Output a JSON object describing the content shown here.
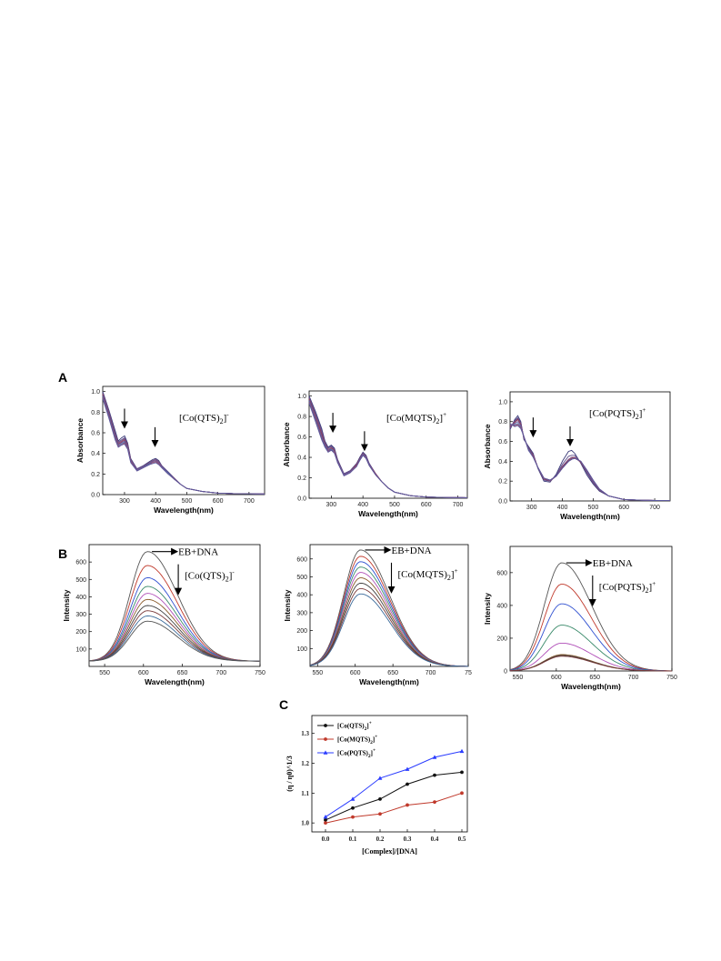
{
  "panel_labels": {
    "a": "A",
    "b": "B",
    "c": "C"
  },
  "colors": {
    "uv_curves": [
      "#3a3a78",
      "#5a4a8a",
      "#7a4a7a",
      "#8a3a5a",
      "#6a5a9a",
      "#4a6aaa",
      "#9a4a6a",
      "#5a5aa0"
    ],
    "fl_curves": [
      "#555555",
      "#c0392b",
      "#2e4fd0",
      "#3a8a6a",
      "#b04fb8",
      "#8a5a2a",
      "#404040",
      "#7a3a3a",
      "#3a6a9a"
    ],
    "c_series": [
      "#111111",
      "#c0392b",
      "#2a3cff"
    ]
  },
  "chart_data": [
    {
      "type": "line",
      "panel": "A",
      "xlabel": "Wavelength(nm)",
      "ylabel": "Absorbance",
      "annotation": "[Co(QTS)2]",
      "xlim": [
        230,
        750
      ],
      "ylim": [
        0,
        1.05
      ],
      "xticks": [
        "300",
        "400",
        "500",
        "600",
        "700"
      ],
      "yticks": [
        "0.0",
        "0.2",
        "0.4",
        "0.6",
        "0.8",
        "1.0"
      ],
      "arrows_at_nm": [
        300,
        398
      ],
      "x": [
        230,
        250,
        270,
        280,
        290,
        300,
        310,
        320,
        340,
        360,
        380,
        390,
        400,
        410,
        420,
        440,
        460,
        480,
        500,
        550,
        600,
        650,
        700,
        750
      ],
      "series": [
        {
          "values": [
            1.0,
            0.82,
            0.62,
            0.52,
            0.55,
            0.57,
            0.5,
            0.35,
            0.25,
            0.28,
            0.32,
            0.34,
            0.35,
            0.33,
            0.28,
            0.22,
            0.16,
            0.1,
            0.06,
            0.03,
            0.015,
            0.01,
            0.008,
            0.006
          ]
        },
        {
          "values": [
            0.99,
            0.81,
            0.6,
            0.51,
            0.53,
            0.55,
            0.49,
            0.34,
            0.25,
            0.28,
            0.31,
            0.33,
            0.34,
            0.32,
            0.28,
            0.22,
            0.16,
            0.1,
            0.06,
            0.03,
            0.015,
            0.01,
            0.008,
            0.006
          ]
        },
        {
          "values": [
            0.98,
            0.79,
            0.58,
            0.5,
            0.52,
            0.54,
            0.48,
            0.34,
            0.24,
            0.27,
            0.31,
            0.33,
            0.34,
            0.32,
            0.27,
            0.21,
            0.16,
            0.1,
            0.06,
            0.03,
            0.015,
            0.01,
            0.008,
            0.006
          ]
        },
        {
          "values": [
            0.97,
            0.78,
            0.57,
            0.49,
            0.51,
            0.53,
            0.47,
            0.33,
            0.24,
            0.27,
            0.3,
            0.32,
            0.33,
            0.31,
            0.27,
            0.21,
            0.15,
            0.1,
            0.06,
            0.03,
            0.015,
            0.01,
            0.008,
            0.006
          ]
        },
        {
          "values": [
            0.96,
            0.77,
            0.56,
            0.48,
            0.5,
            0.52,
            0.46,
            0.33,
            0.24,
            0.27,
            0.3,
            0.32,
            0.33,
            0.31,
            0.27,
            0.21,
            0.15,
            0.1,
            0.06,
            0.03,
            0.015,
            0.01,
            0.008,
            0.006
          ]
        },
        {
          "values": [
            0.95,
            0.76,
            0.55,
            0.48,
            0.49,
            0.51,
            0.46,
            0.32,
            0.23,
            0.26,
            0.3,
            0.31,
            0.32,
            0.3,
            0.26,
            0.21,
            0.15,
            0.1,
            0.06,
            0.03,
            0.015,
            0.01,
            0.008,
            0.006
          ]
        },
        {
          "values": [
            0.94,
            0.75,
            0.54,
            0.47,
            0.48,
            0.5,
            0.45,
            0.32,
            0.23,
            0.26,
            0.29,
            0.31,
            0.32,
            0.3,
            0.26,
            0.2,
            0.15,
            0.1,
            0.06,
            0.03,
            0.015,
            0.01,
            0.008,
            0.006
          ]
        },
        {
          "values": [
            0.93,
            0.74,
            0.53,
            0.46,
            0.48,
            0.49,
            0.44,
            0.31,
            0.23,
            0.26,
            0.29,
            0.3,
            0.31,
            0.29,
            0.26,
            0.2,
            0.15,
            0.1,
            0.06,
            0.03,
            0.015,
            0.01,
            0.008,
            0.006
          ]
        }
      ]
    },
    {
      "type": "line",
      "panel": "A",
      "xlabel": "Wavelength(nm)",
      "ylabel": "Absorbance",
      "annotation": "[Co(MQTS)2]",
      "xlim": [
        230,
        730
      ],
      "ylim": [
        0,
        1.05
      ],
      "xticks": [
        "300",
        "400",
        "500",
        "600",
        "700"
      ],
      "yticks": [
        "0.0",
        "0.2",
        "0.4",
        "0.6",
        "0.8",
        "1.0"
      ],
      "arrows_at_nm": [
        305,
        405
      ],
      "x": [
        230,
        250,
        270,
        280,
        290,
        300,
        310,
        320,
        340,
        360,
        380,
        390,
        400,
        410,
        420,
        440,
        460,
        480,
        500,
        550,
        600,
        650,
        700,
        730
      ],
      "series": [
        {
          "values": [
            1.0,
            0.85,
            0.68,
            0.56,
            0.5,
            0.52,
            0.49,
            0.38,
            0.24,
            0.27,
            0.34,
            0.4,
            0.45,
            0.42,
            0.34,
            0.24,
            0.16,
            0.1,
            0.06,
            0.025,
            0.012,
            0.008,
            0.006,
            0.005
          ]
        },
        {
          "values": [
            0.99,
            0.83,
            0.66,
            0.55,
            0.49,
            0.51,
            0.48,
            0.37,
            0.24,
            0.27,
            0.34,
            0.39,
            0.44,
            0.41,
            0.34,
            0.24,
            0.16,
            0.1,
            0.06,
            0.025,
            0.012,
            0.008,
            0.006,
            0.005
          ]
        },
        {
          "values": [
            0.98,
            0.81,
            0.64,
            0.54,
            0.48,
            0.5,
            0.47,
            0.37,
            0.23,
            0.26,
            0.33,
            0.39,
            0.44,
            0.41,
            0.33,
            0.24,
            0.16,
            0.1,
            0.06,
            0.025,
            0.012,
            0.008,
            0.006,
            0.005
          ]
        },
        {
          "values": [
            0.97,
            0.8,
            0.62,
            0.53,
            0.47,
            0.49,
            0.47,
            0.36,
            0.23,
            0.26,
            0.33,
            0.38,
            0.43,
            0.4,
            0.33,
            0.24,
            0.16,
            0.1,
            0.06,
            0.025,
            0.012,
            0.008,
            0.006,
            0.005
          ]
        },
        {
          "values": [
            0.96,
            0.78,
            0.6,
            0.52,
            0.47,
            0.48,
            0.46,
            0.36,
            0.23,
            0.26,
            0.32,
            0.38,
            0.43,
            0.4,
            0.33,
            0.23,
            0.16,
            0.1,
            0.06,
            0.025,
            0.012,
            0.008,
            0.006,
            0.005
          ]
        },
        {
          "values": [
            0.95,
            0.77,
            0.59,
            0.51,
            0.46,
            0.48,
            0.45,
            0.35,
            0.22,
            0.25,
            0.32,
            0.37,
            0.42,
            0.39,
            0.32,
            0.23,
            0.16,
            0.1,
            0.06,
            0.025,
            0.012,
            0.008,
            0.006,
            0.005
          ]
        },
        {
          "values": [
            0.94,
            0.76,
            0.58,
            0.5,
            0.46,
            0.47,
            0.45,
            0.35,
            0.22,
            0.25,
            0.32,
            0.37,
            0.42,
            0.39,
            0.32,
            0.23,
            0.16,
            0.1,
            0.06,
            0.025,
            0.012,
            0.008,
            0.006,
            0.005
          ]
        },
        {
          "values": [
            0.93,
            0.75,
            0.57,
            0.5,
            0.45,
            0.47,
            0.44,
            0.35,
            0.22,
            0.25,
            0.31,
            0.37,
            0.42,
            0.39,
            0.32,
            0.23,
            0.16,
            0.1,
            0.06,
            0.025,
            0.012,
            0.008,
            0.006,
            0.005
          ]
        }
      ]
    },
    {
      "type": "line",
      "panel": "A",
      "xlabel": "Wavelength(nm)",
      "ylabel": "Absorbance",
      "annotation": "[Co(PQTS)2]",
      "xlim": [
        230,
        750
      ],
      "ylim": [
        0,
        1.1
      ],
      "xticks": [
        "300",
        "400",
        "500",
        "600",
        "700"
      ],
      "yticks": [
        "0.0",
        "0.2",
        "0.4",
        "0.6",
        "0.8",
        "1.0"
      ],
      "arrows_at_nm": [
        305,
        425
      ],
      "x": [
        230,
        245,
        255,
        265,
        275,
        290,
        305,
        320,
        340,
        360,
        380,
        400,
        420,
        430,
        440,
        460,
        480,
        500,
        520,
        550,
        600,
        650,
        700,
        750
      ],
      "series": [
        {
          "values": [
            0.72,
            0.82,
            0.86,
            0.8,
            0.62,
            0.55,
            0.48,
            0.33,
            0.2,
            0.19,
            0.27,
            0.4,
            0.5,
            0.51,
            0.48,
            0.38,
            0.26,
            0.17,
            0.1,
            0.05,
            0.015,
            0.008,
            0.005,
            0.004
          ]
        },
        {
          "values": [
            0.73,
            0.81,
            0.84,
            0.79,
            0.63,
            0.54,
            0.47,
            0.34,
            0.21,
            0.2,
            0.26,
            0.37,
            0.45,
            0.46,
            0.46,
            0.39,
            0.28,
            0.18,
            0.11,
            0.05,
            0.015,
            0.008,
            0.005,
            0.004
          ]
        },
        {
          "values": [
            0.74,
            0.8,
            0.83,
            0.78,
            0.64,
            0.53,
            0.46,
            0.34,
            0.22,
            0.2,
            0.25,
            0.35,
            0.42,
            0.44,
            0.44,
            0.39,
            0.29,
            0.19,
            0.11,
            0.05,
            0.015,
            0.008,
            0.005,
            0.004
          ]
        },
        {
          "values": [
            0.75,
            0.79,
            0.82,
            0.77,
            0.64,
            0.53,
            0.46,
            0.34,
            0.22,
            0.21,
            0.25,
            0.34,
            0.41,
            0.43,
            0.44,
            0.39,
            0.3,
            0.2,
            0.12,
            0.05,
            0.015,
            0.008,
            0.005,
            0.004
          ]
        },
        {
          "values": [
            0.76,
            0.78,
            0.8,
            0.76,
            0.65,
            0.52,
            0.45,
            0.34,
            0.23,
            0.21,
            0.25,
            0.33,
            0.4,
            0.42,
            0.43,
            0.4,
            0.3,
            0.2,
            0.12,
            0.05,
            0.015,
            0.008,
            0.005,
            0.004
          ]
        },
        {
          "values": [
            0.76,
            0.77,
            0.78,
            0.75,
            0.65,
            0.52,
            0.45,
            0.34,
            0.23,
            0.21,
            0.25,
            0.33,
            0.4,
            0.42,
            0.43,
            0.4,
            0.31,
            0.21,
            0.12,
            0.05,
            0.015,
            0.008,
            0.005,
            0.004
          ]
        },
        {
          "values": [
            0.77,
            0.76,
            0.77,
            0.74,
            0.65,
            0.51,
            0.45,
            0.34,
            0.23,
            0.21,
            0.25,
            0.33,
            0.4,
            0.42,
            0.43,
            0.4,
            0.31,
            0.21,
            0.12,
            0.05,
            0.015,
            0.008,
            0.005,
            0.004
          ]
        },
        {
          "values": [
            0.78,
            0.75,
            0.76,
            0.73,
            0.65,
            0.51,
            0.44,
            0.34,
            0.23,
            0.21,
            0.25,
            0.33,
            0.4,
            0.42,
            0.43,
            0.4,
            0.31,
            0.21,
            0.12,
            0.05,
            0.015,
            0.008,
            0.005,
            0.004
          ]
        }
      ]
    },
    {
      "type": "line",
      "panel": "B",
      "xlabel": "Wavelength(nm)",
      "ylabel": "Intensity",
      "annotations": [
        "EB+DNA",
        "[Co(QTS)2]"
      ],
      "xlim": [
        530,
        750
      ],
      "ylim": [
        0,
        700
      ],
      "xticks": [
        "550",
        "600",
        "650",
        "700",
        "750"
      ],
      "yticks": [
        "100",
        "200",
        "300",
        "400",
        "500",
        "600"
      ],
      "peak_nm": 605,
      "peaks": [
        660,
        580,
        510,
        460,
        420,
        385,
        350,
        320,
        290,
        260
      ],
      "baseline": 30
    },
    {
      "type": "line",
      "panel": "B",
      "xlabel": "Wavelength(nm)",
      "ylabel": "Intensity",
      "annotations": [
        "EB+DNA",
        "[Co(MQTS)2]"
      ],
      "xlim": [
        540,
        750
      ],
      "ylim": [
        0,
        680
      ],
      "xticks": [
        "550",
        "600",
        "650",
        "700",
        "75"
      ],
      "yticks": [
        "100",
        "200",
        "300",
        "400",
        "500",
        "600"
      ],
      "peak_nm": 607,
      "peaks": [
        650,
        615,
        585,
        555,
        525,
        495,
        465,
        435,
        405
      ],
      "baseline": 0
    },
    {
      "type": "line",
      "panel": "B",
      "xlabel": "Wavelength(nm)",
      "ylabel": "Intensity",
      "annotations": [
        "EB+DNA",
        "[Co(PQTS)2]"
      ],
      "xlim": [
        540,
        750
      ],
      "ylim": [
        0,
        760
      ],
      "xticks": [
        "550",
        "600",
        "650",
        "700",
        "750"
      ],
      "yticks": [
        "0",
        "200",
        "400",
        "600"
      ],
      "peak_nm": 607,
      "peaks": [
        660,
        530,
        410,
        280,
        170,
        100,
        95,
        90
      ],
      "baseline": 0
    },
    {
      "type": "line",
      "panel": "C",
      "xlabel": "[Complex]/[DNA]",
      "ylabel": "(η / η0)^1/3",
      "ylim": [
        0.97,
        1.36
      ],
      "xlim": [
        -0.05,
        0.52
      ],
      "xticks": [
        "0.0",
        "0.1",
        "0.2",
        "0.3",
        "0.4",
        "0.5"
      ],
      "yticks": [
        "1.0",
        "1.1",
        "1.2",
        "1.3"
      ],
      "x": [
        0.0,
        0.1,
        0.2,
        0.3,
        0.4,
        0.5
      ],
      "series": [
        {
          "name": "[Co(QTS)2]+",
          "values": [
            1.01,
            1.05,
            1.08,
            1.13,
            1.16,
            1.17
          ]
        },
        {
          "name": "[Co(MQTS)2]+",
          "values": [
            1.0,
            1.02,
            1.03,
            1.06,
            1.07,
            1.1
          ]
        },
        {
          "name": "[Co(PQTS)2]+",
          "values": [
            1.02,
            1.08,
            1.15,
            1.18,
            1.22,
            1.24
          ]
        }
      ]
    }
  ]
}
